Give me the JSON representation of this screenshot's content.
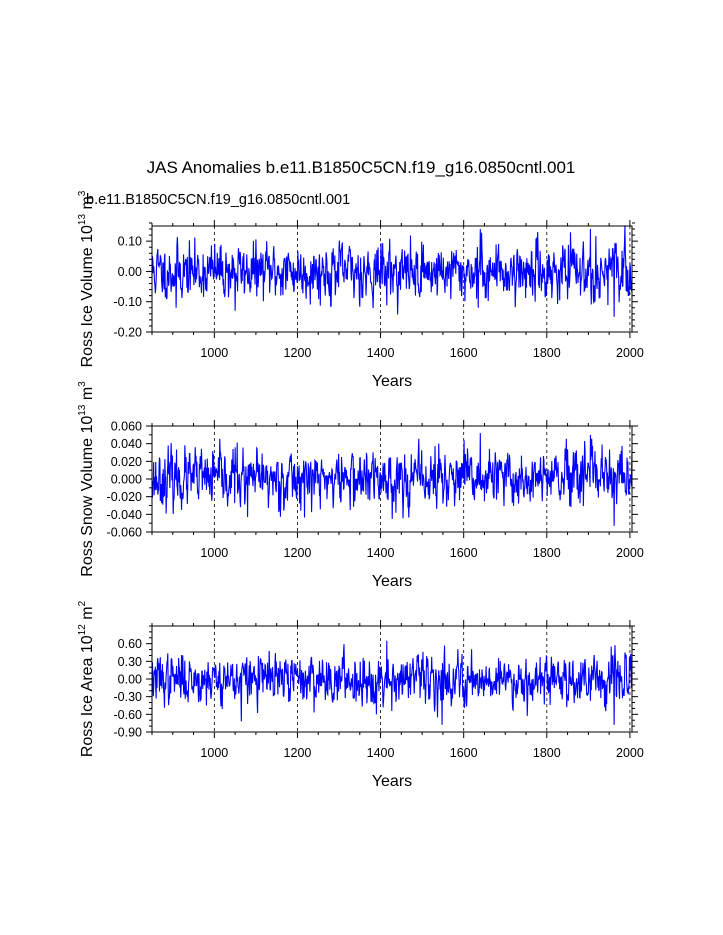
{
  "title": "JAS Anomalies b.e11.B1850C5CN.f19_g16.0850cntl.001",
  "subtitle": "b.e11.B1850C5CN.f19_g16.0850cntl.001",
  "colors": {
    "series": "#0000ff",
    "subtitle": "#0000ff",
    "axis": "#000000"
  },
  "chart_data": [
    {
      "type": "line",
      "name": "ross-ice-volume",
      "ylabel": {
        "main": "Ross Ice Volume 10",
        "exp": "13",
        "unit": " m",
        "unit_exp": "3"
      },
      "xlabel": "Years",
      "xlim": [
        850,
        2005
      ],
      "ylim": [
        -0.2,
        0.15
      ],
      "x_ticks": [
        1000,
        1200,
        1400,
        1600,
        1800,
        2000
      ],
      "x_tick_labels": [
        "1000",
        "1200",
        "1400",
        "1600",
        "1800",
        "2000"
      ],
      "y_ticks": [
        -0.2,
        -0.1,
        0.0,
        0.1
      ],
      "y_tick_labels": [
        "-0.20",
        "-0.10",
        "0.00",
        "0.10"
      ],
      "y_minor": 0.02,
      "noise": {
        "amplitude": 0.1,
        "seed": 11,
        "extremes": [
          [
            908,
            -0.12
          ],
          [
            1050,
            -0.13
          ],
          [
            1640,
            0.14
          ],
          [
            1905,
            0.14
          ],
          [
            1962,
            -0.15
          ],
          [
            1635,
            -0.12
          ]
        ]
      }
    },
    {
      "type": "line",
      "name": "ross-snow-volume",
      "ylabel": {
        "main": "Ross Snow Volume 10",
        "exp": "13",
        "unit": " m",
        "unit_exp": "3"
      },
      "xlabel": "Years",
      "xlim": [
        850,
        2005
      ],
      "ylim": [
        -0.06,
        0.06
      ],
      "x_ticks": [
        1000,
        1200,
        1400,
        1600,
        1800,
        2000
      ],
      "x_tick_labels": [
        "1000",
        "1200",
        "1400",
        "1600",
        "1800",
        "2000"
      ],
      "y_ticks": [
        -0.06,
        -0.04,
        -0.02,
        0.0,
        0.02,
        0.04,
        0.06
      ],
      "y_tick_labels": [
        "-0.060",
        "-0.040",
        "-0.020",
        "0.000",
        "0.020",
        "0.040",
        "0.060"
      ],
      "y_minor": 0.01,
      "noise": {
        "amplitude": 0.035,
        "seed": 23,
        "extremes": [
          [
            1050,
            0.036
          ],
          [
            1640,
            0.052
          ],
          [
            1905,
            0.05
          ],
          [
            1962,
            -0.053
          ],
          [
            1080,
            -0.043
          ],
          [
            1540,
            0.04
          ]
        ]
      }
    },
    {
      "type": "line",
      "name": "ross-ice-area",
      "ylabel": {
        "main": "Ross Ice Area 10",
        "exp": "12",
        "unit": " m",
        "unit_exp": "2"
      },
      "xlabel": "Years",
      "xlim": [
        850,
        2005
      ],
      "ylim": [
        -0.9,
        0.9
      ],
      "x_ticks": [
        1000,
        1200,
        1400,
        1600,
        1800,
        2000
      ],
      "x_tick_labels": [
        "1000",
        "1200",
        "1400",
        "1600",
        "1800",
        "2000"
      ],
      "y_ticks": [
        -0.9,
        -0.6,
        -0.3,
        0.0,
        0.3,
        0.6
      ],
      "y_tick_labels": [
        "-0.90",
        "-0.60",
        "-0.30",
        "0.00",
        "0.30",
        "0.60"
      ],
      "y_minor": 0.1,
      "noise": {
        "amplitude": 0.45,
        "seed": 37,
        "extremes": [
          [
            1065,
            -0.72
          ],
          [
            1415,
            0.65
          ],
          [
            1548,
            -0.78
          ],
          [
            1962,
            -0.78
          ],
          [
            1955,
            0.55
          ],
          [
            1390,
            -0.6
          ]
        ]
      }
    }
  ]
}
